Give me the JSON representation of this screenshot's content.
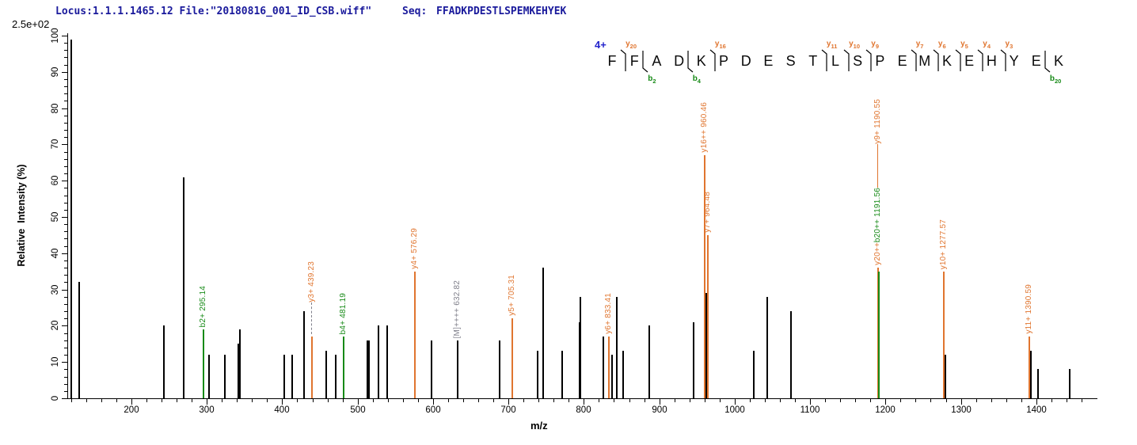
{
  "header": {
    "locus_file": "Locus:1.1.1.1465.12 File:\"20180816_001_ID_CSB.wiff\"",
    "seq_label": "Seq:",
    "seq_value": "FFADKPDESTLSPEMKEHYEK"
  },
  "colors": {
    "orange": "#E0752F",
    "green": "#178A17",
    "gray": "#7F7F8A",
    "black": "#000000",
    "navy": "#1A1A9C",
    "blue": "#2323CC"
  },
  "sequence_panel": {
    "charge": "4+",
    "residues": [
      "F",
      "F",
      "A",
      "D",
      "K",
      "P",
      "D",
      "E",
      "S",
      "T",
      "L",
      "S",
      "P",
      "E",
      "M",
      "K",
      "E",
      "H",
      "Y",
      "E",
      "K"
    ],
    "boundaries": [
      {
        "after": 1,
        "ion": "y",
        "num": "20"
      },
      {
        "after": 2,
        "ion": "b",
        "num": "2"
      },
      {
        "after": 4,
        "ion": "b",
        "num": "4"
      },
      {
        "after": 5,
        "ion": "y",
        "num": "16"
      },
      {
        "after": 10,
        "ion": "y",
        "num": "11"
      },
      {
        "after": 11,
        "ion": "y",
        "num": "10"
      },
      {
        "after": 12,
        "ion": "y",
        "num": "9"
      },
      {
        "after": 14,
        "ion": "y",
        "num": "7"
      },
      {
        "after": 15,
        "ion": "y",
        "num": "6"
      },
      {
        "after": 16,
        "ion": "y",
        "num": "5"
      },
      {
        "after": 17,
        "ion": "y",
        "num": "4"
      },
      {
        "after": 18,
        "ion": "y",
        "num": "3"
      },
      {
        "after": 20,
        "ion": "b",
        "num": "20"
      }
    ]
  },
  "chart_data": {
    "type": "bar",
    "style": "centroided-mass-spectrum",
    "title": "",
    "xlabel": "m/z",
    "ylabel": "Relative  Intensity (%)",
    "top_left_label": "2.5e+02",
    "x_axis": {
      "min": 115,
      "max": 1480,
      "label_first": 200,
      "label_last": 1400,
      "major_step": 100,
      "minor_step": 20,
      "minor_first": 120,
      "minor_last": 1460
    },
    "y_axis": {
      "min": 0,
      "max": 100,
      "major_step": 10,
      "minor_step": 2
    },
    "grid": false,
    "legend": false,
    "peaks": [
      {
        "mz": 120,
        "i": 99,
        "c": "black"
      },
      {
        "mz": 131,
        "i": 32,
        "c": "black"
      },
      {
        "mz": 243,
        "i": 20,
        "c": "black"
      },
      {
        "mz": 269,
        "i": 61,
        "c": "black"
      },
      {
        "mz": 303,
        "i": 12,
        "c": "black"
      },
      {
        "mz": 324,
        "i": 12,
        "c": "black"
      },
      {
        "mz": 342,
        "i": 15,
        "c": "black"
      },
      {
        "mz": 343.5,
        "i": 19,
        "c": "black"
      },
      {
        "mz": 403,
        "i": 12,
        "c": "black"
      },
      {
        "mz": 413,
        "i": 12,
        "c": "black"
      },
      {
        "mz": 429,
        "i": 24,
        "c": "black"
      },
      {
        "mz": 458,
        "i": 13,
        "c": "black"
      },
      {
        "mz": 471,
        "i": 12,
        "c": "black"
      },
      {
        "mz": 513,
        "i": 16,
        "c": "black"
      },
      {
        "mz": 515,
        "i": 16,
        "c": "black"
      },
      {
        "mz": 528,
        "i": 20,
        "c": "black"
      },
      {
        "mz": 539,
        "i": 20,
        "c": "black"
      },
      {
        "mz": 598,
        "i": 16,
        "c": "black"
      },
      {
        "mz": 688,
        "i": 16,
        "c": "black"
      },
      {
        "mz": 739,
        "i": 13,
        "c": "black"
      },
      {
        "mz": 746,
        "i": 36,
        "c": "black"
      },
      {
        "mz": 771,
        "i": 13,
        "c": "black"
      },
      {
        "mz": 794,
        "i": 21,
        "c": "black"
      },
      {
        "mz": 795.5,
        "i": 28,
        "c": "black"
      },
      {
        "mz": 826,
        "i": 17,
        "c": "black"
      },
      {
        "mz": 837,
        "i": 12,
        "c": "black"
      },
      {
        "mz": 844,
        "i": 28,
        "c": "black"
      },
      {
        "mz": 852,
        "i": 13,
        "c": "black"
      },
      {
        "mz": 887,
        "i": 20,
        "c": "black"
      },
      {
        "mz": 946,
        "i": 21,
        "c": "black"
      },
      {
        "mz": 962.5,
        "i": 29,
        "c": "black"
      },
      {
        "mz": 1025,
        "i": 13,
        "c": "black"
      },
      {
        "mz": 1043,
        "i": 28,
        "c": "black"
      },
      {
        "mz": 1075,
        "i": 24,
        "c": "black"
      },
      {
        "mz": 1279.5,
        "i": 12,
        "c": "black"
      },
      {
        "mz": 1392.5,
        "i": 13,
        "c": "black"
      },
      {
        "mz": 1402,
        "i": 8,
        "c": "black"
      },
      {
        "mz": 1444,
        "i": 8,
        "c": "black"
      },
      {
        "mz": 295.14,
        "i": 19,
        "c": "green",
        "parts": [
          {
            "text": "b2+ 295.14",
            "color": "green"
          }
        ]
      },
      {
        "mz": 439.23,
        "i": 17,
        "c": "orange",
        "parts": [
          {
            "text": "y3+ 439.23",
            "color": "orange"
          },
          {
            "leader": 40,
            "dash": true,
            "color": "gray"
          }
        ]
      },
      {
        "mz": 481.19,
        "i": 17,
        "c": "green",
        "parts": [
          {
            "text": "b4+ 481.19",
            "color": "green"
          }
        ]
      },
      {
        "mz": 576.29,
        "i": 35,
        "c": "orange",
        "parts": [
          {
            "text": "y4+ 576.29",
            "color": "orange"
          }
        ]
      },
      {
        "mz": 632.82,
        "i": 16,
        "c": "black",
        "parts": [
          {
            "text": "[M]++++ 632.82",
            "color": "gray"
          }
        ]
      },
      {
        "mz": 705.31,
        "i": 22,
        "c": "orange",
        "parts": [
          {
            "text": "y5+ 705.31",
            "color": "orange"
          }
        ]
      },
      {
        "mz": 833.41,
        "i": 17,
        "c": "orange",
        "parts": [
          {
            "text": "y6+ 833.41",
            "color": "orange"
          }
        ]
      },
      {
        "mz": 960.46,
        "i": 67,
        "c": "orange",
        "parts": [
          {
            "text": "y16++ 960.46",
            "color": "orange"
          }
        ]
      },
      {
        "mz": 964.48,
        "i": 45,
        "c": "orange",
        "parts": [
          {
            "text": "y7+ 964.48",
            "color": "orange"
          }
        ]
      },
      {
        "mz": 1190.55,
        "i": 36,
        "c": "orange",
        "parts": [
          {
            "text": "y9+ 1190.55",
            "color": "orange"
          },
          {
            "leader": 55,
            "color": "orange"
          },
          {
            "text": "b20++ 1191.56",
            "color": "green"
          },
          {
            "text": "y20++",
            "color": "orange"
          }
        ]
      },
      {
        "mz": 1191.56,
        "i": 35,
        "c": "green"
      },
      {
        "mz": 1277.57,
        "i": 35,
        "c": "orange",
        "parts": [
          {
            "text": "y10+ 1277.57",
            "color": "orange"
          }
        ]
      },
      {
        "mz": 1390.59,
        "i": 17,
        "c": "orange",
        "parts": [
          {
            "text": "y11+ 1390.59",
            "color": "orange"
          }
        ]
      }
    ]
  }
}
